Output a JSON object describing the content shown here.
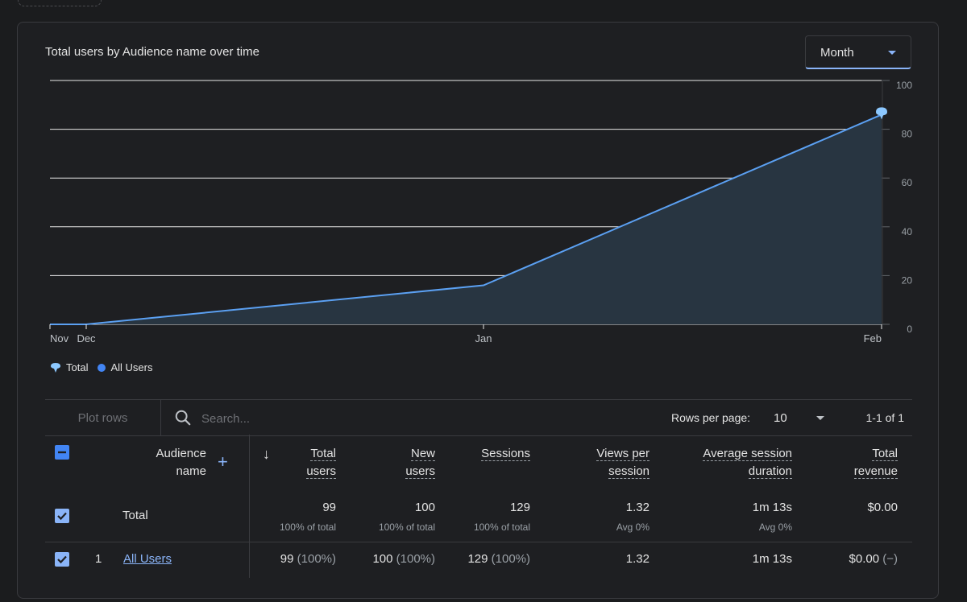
{
  "chart_card": {
    "title": "Total users by Audience name over time",
    "period_select": "Month"
  },
  "chart_data": {
    "type": "area",
    "title": "Total users by Audience name over time",
    "x": [
      "Nov",
      "Dec",
      "Jan",
      "Feb"
    ],
    "series": [
      {
        "name": "All Users",
        "values": [
          0,
          0,
          16,
          86
        ]
      }
    ],
    "y_ticks": [
      "100",
      "80",
      "60",
      "40",
      "20",
      "0"
    ],
    "ylim": [
      0,
      100
    ],
    "legend": [
      "Total",
      "All Users"
    ],
    "colors": {
      "line": "#5ba0f2",
      "fill": "#283541",
      "marker": "#8cc8ff",
      "grid": "#e8e8e8"
    }
  },
  "legend": {
    "total": "Total",
    "all_users": "All Users"
  },
  "toolbar": {
    "plot_rows": "Plot rows",
    "search_placeholder": "Search...",
    "rows_per_page_label": "Rows per page:",
    "rows_per_page_value": "10",
    "pagination": "1-1 of 1"
  },
  "table": {
    "headers": {
      "audience_name_1": "Audience",
      "audience_name_2": "name",
      "total_users_1": "Total",
      "total_users_2": "users",
      "new_users_1": "New",
      "new_users_2": "users",
      "sessions": "Sessions",
      "views_per_session_1": "Views per",
      "views_per_session_2": "session",
      "avg_session_1": "Average session",
      "avg_session_2": "duration",
      "total_revenue_1": "Total",
      "total_revenue_2": "revenue"
    },
    "total_row": {
      "label": "Total",
      "total_users": "99",
      "total_users_sub": "100% of total",
      "new_users": "100",
      "new_users_sub": "100% of total",
      "sessions": "129",
      "sessions_sub": "100% of total",
      "views_per_session": "1.32",
      "views_per_session_sub": "Avg 0%",
      "avg_session": "1m 13s",
      "avg_session_sub": "Avg 0%",
      "total_revenue": "$0.00"
    },
    "rows": [
      {
        "index": "1",
        "name": "All Users",
        "total_users": "99",
        "total_users_pct": "(100%)",
        "new_users": "100",
        "new_users_pct": "(100%)",
        "sessions": "129",
        "sessions_pct": "(100%)",
        "views_per_session": "1.32",
        "avg_session": "1m 13s",
        "total_revenue": "$0.00",
        "total_revenue_pct": "(−)"
      }
    ]
  }
}
